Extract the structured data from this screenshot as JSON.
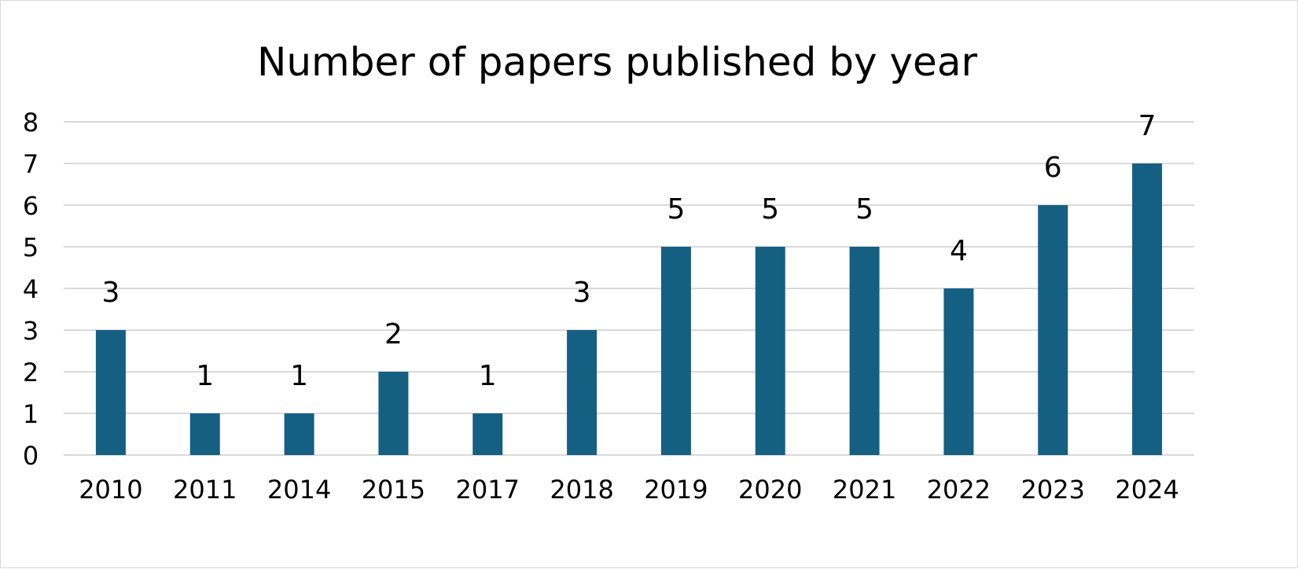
{
  "chart_data": {
    "type": "bar",
    "title": "Number of papers published by year",
    "xlabel": "",
    "ylabel": "",
    "categories": [
      "2010",
      "2011",
      "2014",
      "2015",
      "2017",
      "2018",
      "2019",
      "2020",
      "2021",
      "2022",
      "2023",
      "2024"
    ],
    "values": [
      3,
      1,
      1,
      2,
      1,
      3,
      5,
      5,
      5,
      4,
      6,
      7
    ],
    "ylim": [
      0,
      8
    ],
    "yticks": [
      0,
      1,
      2,
      3,
      4,
      5,
      6,
      7,
      8
    ],
    "grid": true,
    "legend": "none",
    "data_labels": true,
    "bar_color": "#155F82",
    "grid_color": "#d9d9d9"
  }
}
